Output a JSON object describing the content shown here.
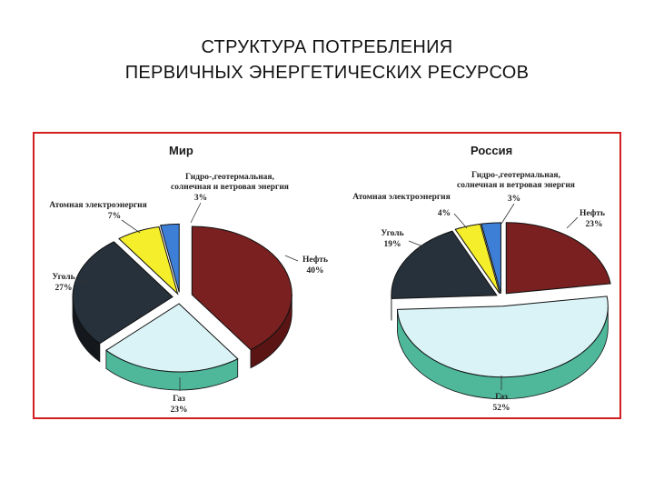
{
  "title": {
    "line1": "СТРУКТУРА ПОТРЕБЛЕНИЯ",
    "line2": "ПЕРВИЧНЫХ ЭНЕРГЕТИЧЕСКИХ РЕСУРСОВ"
  },
  "chart_data": [
    {
      "type": "pie",
      "title": "Мир",
      "categories": [
        "Нефть",
        "Газ",
        "Уголь",
        "Атомная электроэнергия",
        "Гидро-,геотермальная, солнечная и ветровая энергия"
      ],
      "values": [
        40,
        23,
        27,
        7,
        3
      ],
      "value_labels": [
        "40%",
        "23%",
        "27%",
        "7%",
        "3%"
      ],
      "label_lines": {
        "oil": [
          "Нефть",
          "40%"
        ],
        "gas": [
          "Газ",
          "23%"
        ],
        "coal": [
          "Уголь",
          "27%"
        ],
        "nuclear": [
          "Атомная электроэнергия",
          "7%"
        ],
        "hydro": [
          "Гидро-,геотермальная,",
          "солнечная и ветровая энергия",
          "3%"
        ]
      },
      "colors": [
        "#7a2020",
        "#d9f3f7",
        "#27313b",
        "#f5ee2a",
        "#3d7fd6"
      ]
    },
    {
      "type": "pie",
      "title": "Россия",
      "categories": [
        "Нефть",
        "Газ",
        "Уголь",
        "Атомная электроэнергия",
        "Гидро-,геотермальная, солнечная и ветровая энергия"
      ],
      "values": [
        23,
        52,
        19,
        4,
        3
      ],
      "value_labels": [
        "23%",
        "52%",
        "19%",
        "4%",
        "3%"
      ],
      "label_lines": {
        "oil": [
          "Нефть",
          "23%"
        ],
        "gas": [
          "Газ",
          "52%"
        ],
        "coal": [
          "Уголь",
          "19%"
        ],
        "nuclear": [
          "Атомная электроэнергия",
          "4%"
        ],
        "hydro": [
          "Гидро-,геотермальная,",
          "солнечная и ветровая энергия",
          "3%"
        ]
      },
      "colors": [
        "#7a2020",
        "#d9f3f7",
        "#27313b",
        "#f5ee2a",
        "#3d7fd6"
      ]
    }
  ]
}
